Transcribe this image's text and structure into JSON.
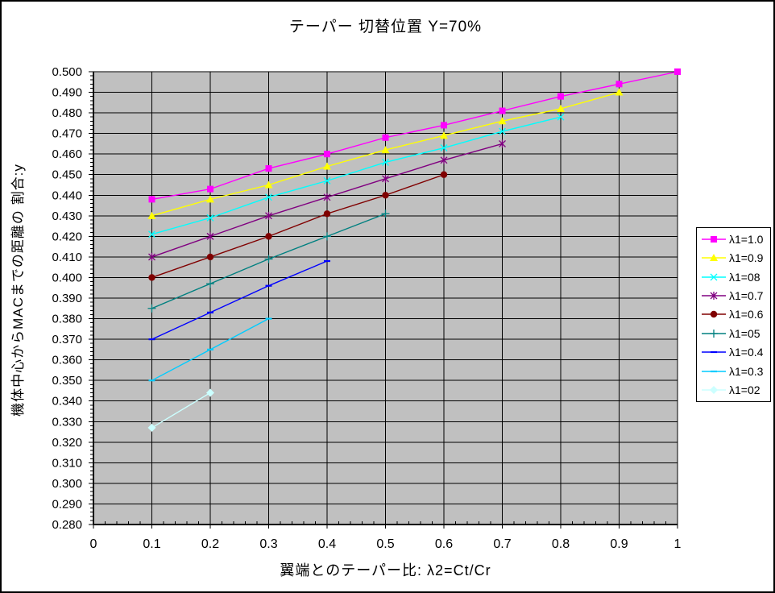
{
  "window": {
    "background": "#FFFFFF",
    "border_color": "#000000"
  },
  "chart_data": {
    "type": "line",
    "title": "テーパー 切替位置 Y=70%",
    "xlabel": "翼端とのテーパー比: λ2=Ct/Cr",
    "ylabel": "機体中心からMACまでの距離の 割合:y",
    "plot_background": "#C0C0C0",
    "gridline_color": "#000000",
    "grid": true,
    "legend_position": "right",
    "xlim": [
      0,
      1
    ],
    "ylim": [
      0.28,
      0.5
    ],
    "x_ticks": [
      "0",
      "0.1",
      "0.2",
      "0.3",
      "0.4",
      "0.5",
      "0.6",
      "0.7",
      "0.8",
      "0.9",
      "1"
    ],
    "x_tick_values": [
      0,
      0.1,
      0.2,
      0.3,
      0.4,
      0.5,
      0.6,
      0.7,
      0.8,
      0.9,
      1
    ],
    "y_ticks": [
      "0.280",
      "0.290",
      "0.300",
      "0.310",
      "0.320",
      "0.330",
      "0.340",
      "0.350",
      "0.360",
      "0.370",
      "0.380",
      "0.390",
      "0.400",
      "0.410",
      "0.420",
      "0.430",
      "0.440",
      "0.450",
      "0.460",
      "0.470",
      "0.480",
      "0.490",
      "0.500"
    ],
    "y_tick_values": [
      0.28,
      0.29,
      0.3,
      0.31,
      0.32,
      0.33,
      0.34,
      0.35,
      0.36,
      0.37,
      0.38,
      0.39,
      0.4,
      0.41,
      0.42,
      0.43,
      0.44,
      0.45,
      0.46,
      0.47,
      0.48,
      0.49,
      0.5
    ],
    "x_minor_step": 0.02,
    "y_minor_step": 0.002,
    "series": [
      {
        "name": "λ1=1.0",
        "color": "#FF00FF",
        "marker": "square",
        "x": [
          0.1,
          0.2,
          0.3,
          0.4,
          0.5,
          0.6,
          0.7,
          0.8,
          0.9,
          1.0
        ],
        "y": [
          0.438,
          0.443,
          0.453,
          0.46,
          0.468,
          0.474,
          0.481,
          0.488,
          0.494,
          0.5
        ]
      },
      {
        "name": "λ1=0.9",
        "color": "#FFFF00",
        "marker": "triangle",
        "x": [
          0.1,
          0.2,
          0.3,
          0.4,
          0.5,
          0.6,
          0.7,
          0.8,
          0.9
        ],
        "y": [
          0.43,
          0.438,
          0.445,
          0.454,
          0.462,
          0.469,
          0.476,
          0.482,
          0.49
        ]
      },
      {
        "name": "λ1=08",
        "color": "#00FFFF",
        "marker": "x",
        "x": [
          0.1,
          0.2,
          0.3,
          0.4,
          0.5,
          0.6,
          0.7,
          0.8
        ],
        "y": [
          0.421,
          0.429,
          0.439,
          0.447,
          0.456,
          0.463,
          0.471,
          0.478
        ]
      },
      {
        "name": "λ1=0.7",
        "color": "#800080",
        "marker": "star",
        "x": [
          0.1,
          0.2,
          0.3,
          0.4,
          0.5,
          0.6,
          0.7
        ],
        "y": [
          0.41,
          0.42,
          0.43,
          0.439,
          0.448,
          0.457,
          0.465
        ]
      },
      {
        "name": "λ1=0.6",
        "color": "#800000",
        "marker": "circle",
        "x": [
          0.1,
          0.2,
          0.3,
          0.4,
          0.5,
          0.6
        ],
        "y": [
          0.4,
          0.41,
          0.42,
          0.431,
          0.44,
          0.45
        ]
      },
      {
        "name": "λ1=05",
        "color": "#008080",
        "marker": "plus",
        "x": [
          0.1,
          0.2,
          0.3,
          0.4,
          0.5
        ],
        "y": [
          0.385,
          0.397,
          0.409,
          0.42,
          0.431
        ]
      },
      {
        "name": "λ1=0.4",
        "color": "#0000FF",
        "marker": "dash",
        "x": [
          0.1,
          0.2,
          0.3,
          0.4
        ],
        "y": [
          0.37,
          0.383,
          0.396,
          0.408
        ]
      },
      {
        "name": "λ1=0.3",
        "color": "#00CCFF",
        "marker": "dash",
        "x": [
          0.1,
          0.2,
          0.3
        ],
        "y": [
          0.35,
          0.365,
          0.38
        ]
      },
      {
        "name": "λ1=02",
        "color": "#CCFFFF",
        "marker": "diamond",
        "x": [
          0.1,
          0.2
        ],
        "y": [
          0.327,
          0.344
        ]
      }
    ]
  }
}
